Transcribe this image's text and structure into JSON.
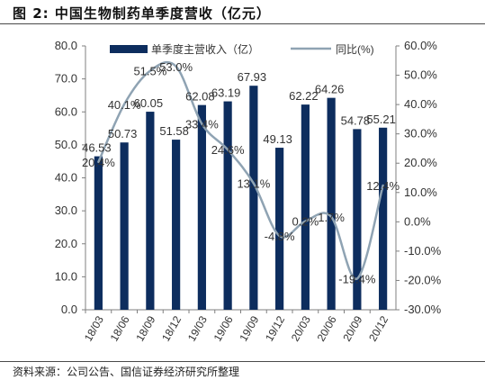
{
  "figure": {
    "title": "图 2:  中国生物制药单季度营收（亿元）",
    "source": "资料来源：公司公告、国信证券经济研究所整理"
  },
  "colors": {
    "bar": "#0d2d5e",
    "line": "#8fa3b3",
    "text": "#333333",
    "axis": "#7f7f7f"
  },
  "chart_data": {
    "type": "bar",
    "categories": [
      "18/03",
      "18/06",
      "18/09",
      "18/12",
      "19/03",
      "19/06",
      "19/09",
      "19/12",
      "20/03",
      "20/06",
      "20/09",
      "20/12"
    ],
    "series": [
      {
        "name": "单季度主营收入（亿）",
        "type": "bar",
        "axis": "left",
        "values": [
          46.53,
          50.73,
          60.05,
          51.58,
          62.08,
          63.19,
          67.93,
          49.13,
          62.22,
          64.26,
          54.78,
          55.21
        ],
        "labels": [
          "46.53",
          "50.73",
          "60.05",
          "51.58",
          "62.08",
          "63.19",
          "67.93",
          "49.13",
          "62.22",
          "64.26",
          "54.78",
          "55.21"
        ]
      },
      {
        "name": "同比(%)",
        "type": "line",
        "axis": "right",
        "smooth": true,
        "values": [
          20.4,
          40.1,
          51.5,
          53.0,
          33.4,
          24.6,
          13.1,
          -4.8,
          0.2,
          1.7,
          -19.4,
          12.4
        ],
        "labels": [
          "20.4%",
          "40.1%",
          "51.5%",
          "53.0%",
          "33.4%",
          "24.6%",
          "13.1%",
          "-4.8%",
          "0.2%",
          "1.7%",
          "-19.4%",
          "12.4%"
        ]
      }
    ],
    "y_left": {
      "lim": [
        0,
        80
      ],
      "ticks": [
        "0.0",
        "10.0",
        "20.0",
        "30.0",
        "40.0",
        "50.0",
        "60.0",
        "70.0",
        "80.0"
      ]
    },
    "y_right": {
      "lim": [
        -30,
        60
      ],
      "ticks": [
        "-30.0%",
        "-20.0%",
        "-10.0%",
        "0.0%",
        "10.0%",
        "20.0%",
        "30.0%",
        "40.0%",
        "50.0%",
        "60.0%"
      ]
    },
    "legend": {
      "position": "top"
    },
    "grid": false
  }
}
